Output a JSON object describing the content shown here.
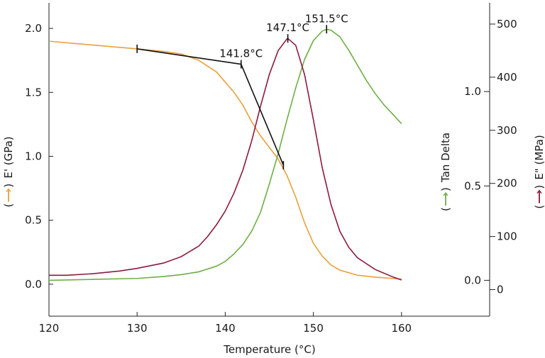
{
  "chart_data": {
    "type": "line",
    "xlabel": "Temperature (°C)",
    "xlim": [
      120,
      170
    ],
    "x_ticks": [
      120,
      130,
      140,
      150,
      160
    ],
    "axes": {
      "left": {
        "label": "E' (GPa)",
        "ylim": [
          -0.25,
          2.2
        ],
        "ticks": [
          0.0,
          0.5,
          1.0,
          1.5,
          2.0
        ],
        "tick_labels": [
          "0.0",
          "0.5",
          "1.0",
          "1.5",
          "2.0"
        ],
        "legend_color": "#E8A13A"
      },
      "tan_delta": {
        "label": "Tan Delta",
        "ylim": [
          -0.19,
          1.47
        ],
        "ticks": [
          0.0,
          0.5,
          1.0
        ],
        "tick_labels": [
          "0.0",
          "0.5",
          "1.0"
        ],
        "legend_color": "#6EAE45"
      },
      "right": {
        "label": "E\" (MPa)",
        "ylim": [
          -50,
          540
        ],
        "ticks": [
          0,
          100,
          200,
          300,
          400,
          500
        ],
        "tick_labels": [
          "0",
          "100",
          "200",
          "300",
          "400",
          "500"
        ],
        "legend_color": "#8B1A42"
      }
    },
    "series": [
      {
        "axis": "left",
        "color": "#E8A13A",
        "points": [
          [
            120,
            1.9
          ],
          [
            125,
            1.87
          ],
          [
            130,
            1.84
          ],
          [
            133,
            1.82
          ],
          [
            135,
            1.8
          ],
          [
            137,
            1.75
          ],
          [
            139,
            1.66
          ],
          [
            140,
            1.58
          ],
          [
            141,
            1.5
          ],
          [
            142,
            1.4
          ],
          [
            143,
            1.27
          ],
          [
            144,
            1.16
          ],
          [
            145,
            1.07
          ],
          [
            146,
            0.98
          ],
          [
            147,
            0.85
          ],
          [
            148,
            0.68
          ],
          [
            149,
            0.48
          ],
          [
            150,
            0.32
          ],
          [
            151,
            0.22
          ],
          [
            152,
            0.15
          ],
          [
            153,
            0.11
          ],
          [
            155,
            0.07
          ],
          [
            157,
            0.055
          ],
          [
            160,
            0.04
          ]
        ]
      },
      {
        "axis": "tan_delta",
        "color": "#6EAE45",
        "points": [
          [
            120,
            0.0
          ],
          [
            125,
            0.005
          ],
          [
            130,
            0.01
          ],
          [
            133,
            0.02
          ],
          [
            135,
            0.03
          ],
          [
            137,
            0.045
          ],
          [
            139,
            0.075
          ],
          [
            140,
            0.1
          ],
          [
            141,
            0.14
          ],
          [
            142,
            0.19
          ],
          [
            143,
            0.26
          ],
          [
            144,
            0.36
          ],
          [
            145,
            0.51
          ],
          [
            146,
            0.67
          ],
          [
            147,
            0.85
          ],
          [
            148,
            1.02
          ],
          [
            149,
            1.17
          ],
          [
            150,
            1.27
          ],
          [
            151,
            1.32
          ],
          [
            151.5,
            1.33
          ],
          [
            152,
            1.325
          ],
          [
            153,
            1.29
          ],
          [
            154,
            1.22
          ],
          [
            155,
            1.14
          ],
          [
            156,
            1.06
          ],
          [
            157,
            0.99
          ],
          [
            158,
            0.93
          ],
          [
            159,
            0.88
          ],
          [
            160,
            0.83
          ]
        ]
      },
      {
        "axis": "right",
        "color": "#8B1A42",
        "points": [
          [
            120,
            27
          ],
          [
            122,
            27
          ],
          [
            125,
            30
          ],
          [
            128,
            35
          ],
          [
            130,
            40
          ],
          [
            133,
            50
          ],
          [
            135,
            62
          ],
          [
            137,
            82
          ],
          [
            138,
            100
          ],
          [
            139,
            122
          ],
          [
            140,
            148
          ],
          [
            141,
            182
          ],
          [
            142,
            225
          ],
          [
            143,
            280
          ],
          [
            144,
            345
          ],
          [
            145,
            405
          ],
          [
            146,
            450
          ],
          [
            147,
            472
          ],
          [
            147.1,
            473
          ],
          [
            148,
            460
          ],
          [
            149,
            405
          ],
          [
            150,
            320
          ],
          [
            151,
            230
          ],
          [
            152,
            160
          ],
          [
            153,
            110
          ],
          [
            154,
            80
          ],
          [
            155,
            60
          ],
          [
            157,
            38
          ],
          [
            159,
            24
          ],
          [
            160,
            18
          ]
        ]
      }
    ],
    "tangent_lines": [
      {
        "axis": "left",
        "color": "#111111",
        "points": [
          [
            130,
            1.84
          ],
          [
            141.8,
            1.72
          ]
        ]
      },
      {
        "axis": "left",
        "color": "#111111",
        "points": [
          [
            141.8,
            1.72
          ],
          [
            146.6,
            0.93
          ]
        ]
      }
    ],
    "markers": [
      {
        "axis": "left",
        "x": 130,
        "y": 1.84
      },
      {
        "axis": "left",
        "x": 141.8,
        "y": 1.72
      },
      {
        "axis": "left",
        "x": 146.6,
        "y": 0.93
      },
      {
        "axis": "right",
        "x": 147.1,
        "y": 473
      },
      {
        "axis": "tan_delta",
        "x": 151.5,
        "y": 1.33
      }
    ],
    "annotations": [
      {
        "text": "141.8°C",
        "axis": "left",
        "x": 141.8,
        "y": 1.72,
        "anchor": "above"
      },
      {
        "text": "147.1°C",
        "axis": "right",
        "x": 147.1,
        "y": 473,
        "anchor": "above"
      },
      {
        "text": "151.5°C",
        "axis": "tan_delta",
        "x": 151.5,
        "y": 1.33,
        "anchor": "above"
      }
    ],
    "grid": false
  }
}
